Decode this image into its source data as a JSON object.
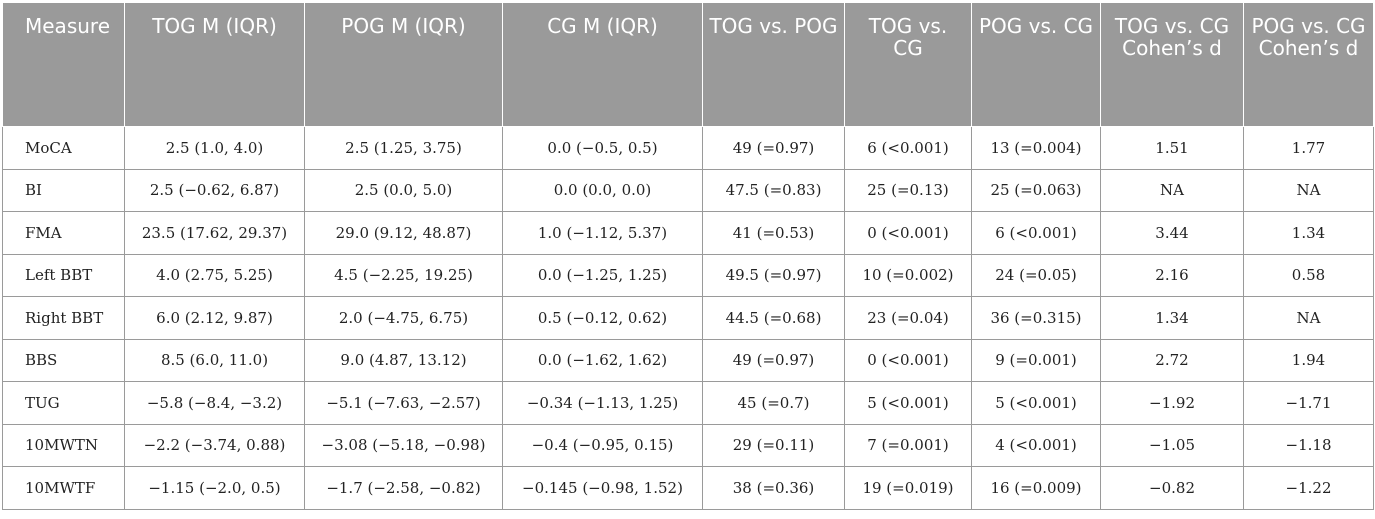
{
  "table": {
    "headers": [
      "Measure",
      "TOG M (IQR)",
      "POG M (IQR)",
      "CG M (IQR)",
      "TOG vs. POG",
      "TOG vs. CG",
      "POG vs. CG",
      "TOG vs. CG Cohen’s d",
      "POG vs. CG Cohen’s d"
    ],
    "rows": [
      [
        "MoCA",
        "2.5 (1.0, 4.0)",
        "2.5 (1.25, 3.75)",
        "0.0 (−0.5, 0.5)",
        "49 (=0.97)",
        "6 (<0.001)",
        "13 (=0.004)",
        "1.51",
        "1.77"
      ],
      [
        "BI",
        "2.5 (−0.62, 6.87)",
        "2.5 (0.0, 5.0)",
        "0.0 (0.0, 0.0)",
        "47.5 (=0.83)",
        "25 (=0.13)",
        "25 (=0.063)",
        "NA",
        "NA"
      ],
      [
        "FMA",
        "23.5 (17.62, 29.37)",
        "29.0 (9.12, 48.87)",
        "1.0 (−1.12, 5.37)",
        "41 (=0.53)",
        "0 (<0.001)",
        "6 (<0.001)",
        "3.44",
        "1.34"
      ],
      [
        "Left BBT",
        "4.0 (2.75, 5.25)",
        "4.5 (−2.25, 19.25)",
        "0.0 (−1.25, 1.25)",
        "49.5 (=0.97)",
        "10 (=0.002)",
        "24 (=0.05)",
        "2.16",
        "0.58"
      ],
      [
        "Right BBT",
        "6.0 (2.12, 9.87)",
        "2.0 (−4.75, 6.75)",
        "0.5 (−0.12, 0.62)",
        "44.5 (=0.68)",
        "23 (=0.04)",
        "36 (=0.315)",
        "1.34",
        "NA"
      ],
      [
        "BBS",
        "8.5 (6.0, 11.0)",
        "9.0 (4.87, 13.12)",
        "0.0 (−1.62, 1.62)",
        "49 (=0.97)",
        "0 (<0.001)",
        "9 (=0.001)",
        "2.72",
        "1.94"
      ],
      [
        "TUG",
        "−5.8 (−8.4, −3.2)",
        "−5.1 (−7.63, −2.57)",
        "−0.34 (−1.13, 1.25)",
        "45 (=0.7)",
        "5 (<0.001)",
        "5 (<0.001)",
        "−1.92",
        "−1.71"
      ],
      [
        "10MWTN",
        "−2.2 (−3.74, 0.88)",
        "−3.08 (−5.18, −0.98)",
        "−0.4 (−0.95, 0.15)",
        "29 (=0.11)",
        "7 (=0.001)",
        "4 (<0.001)",
        "−1.05",
        "−1.18"
      ],
      [
        "10MWTF",
        "−1.15 (−2.0, 0.5)",
        "−1.7 (−2.58, −0.82)",
        "−0.145 (−0.98, 1.52)",
        "38 (=0.36)",
        "19 (=0.019)",
        "16 (=0.009)",
        "−0.82",
        "−1.22"
      ]
    ]
  },
  "colors": {
    "header_background": "#9a9a9a",
    "header_text": "#ffffff",
    "grid_line": "#9a9a9a",
    "body_text": "#222222"
  }
}
